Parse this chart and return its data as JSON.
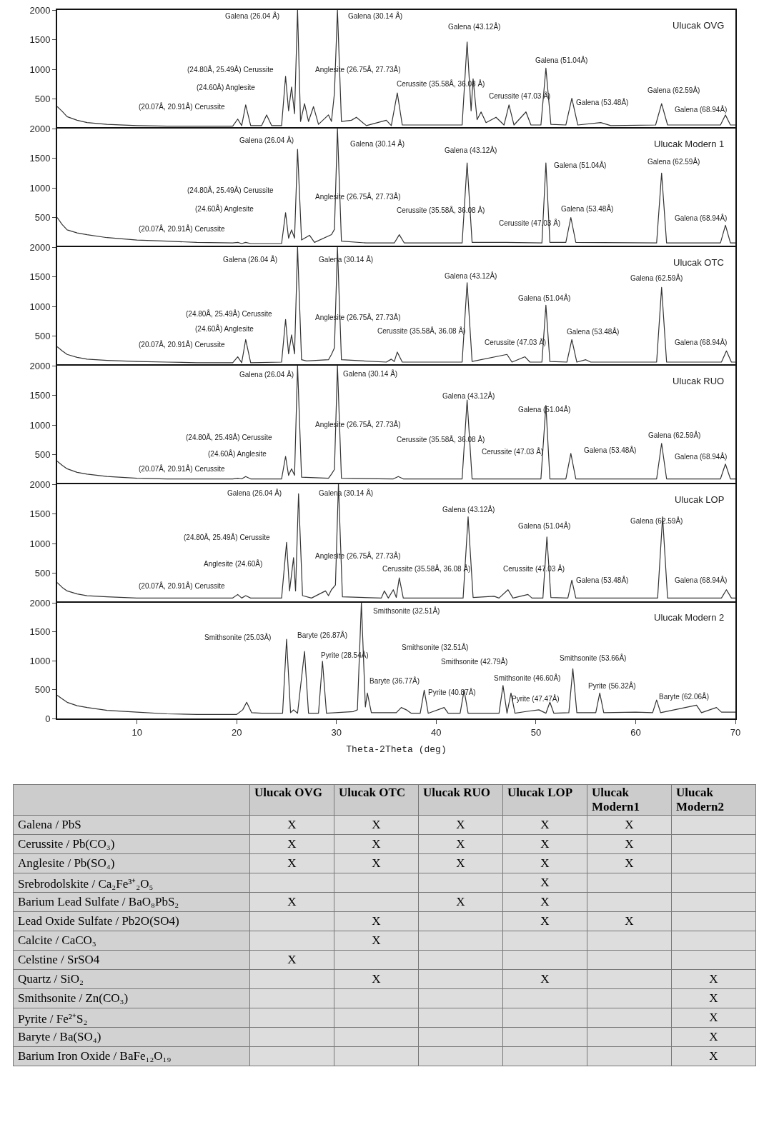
{
  "chart_data": [
    {
      "type": "line",
      "title": "Ulucak OVG",
      "tick_labels": "y",
      "xlim": [
        2,
        70
      ],
      "xticks": [
        10,
        20,
        30,
        40,
        50,
        60,
        70
      ],
      "ylim": [
        0,
        2000
      ],
      "yticks": [
        500,
        1000,
        1500,
        2000
      ],
      "x": [
        2,
        2.5,
        3,
        4,
        5,
        7,
        10,
        13,
        16,
        19.6,
        20.1,
        20.5,
        20.9,
        21.4,
        22.5,
        23,
        23.5,
        24.5,
        24.9,
        25.2,
        25.5,
        25.8,
        26.1,
        26.4,
        26.8,
        27.2,
        27.7,
        28.2,
        29.2,
        29.5,
        29.8,
        30.1,
        30.5,
        31.5,
        32,
        33,
        35,
        35.5,
        36.1,
        36.6,
        40,
        42.6,
        43.1,
        43.5,
        43.7,
        44.1,
        44.5,
        45,
        46,
        46.8,
        47.3,
        47.8,
        49,
        49.5,
        50.5,
        51,
        51.5,
        53,
        53.6,
        54.2,
        56.5,
        57.5,
        62,
        62.6,
        63.2,
        68.5,
        69,
        69.5,
        70
      ],
      "series": [
        {
          "color": "#333333",
          "values": [
            370,
            290,
            200,
            140,
            100,
            70,
            50,
            40,
            40,
            40,
            160,
            50,
            400,
            50,
            50,
            230,
            50,
            50,
            880,
            300,
            700,
            250,
            2000,
            120,
            420,
            120,
            370,
            70,
            230,
            120,
            600,
            2000,
            120,
            140,
            190,
            50,
            140,
            50,
            600,
            60,
            60,
            60,
            1460,
            300,
            840,
            150,
            280,
            100,
            190,
            60,
            400,
            60,
            280,
            60,
            60,
            1020,
            70,
            60,
            510,
            60,
            100,
            50,
            60,
            420,
            60,
            60,
            230,
            60,
            60
          ]
        }
      ],
      "annotations": [
        "Galena (26.04 Å)",
        "Galena (30.14 Å)",
        "Galena (43.12Å)",
        "(24.80Å, 25.49Å) Cerussite",
        "Anglesite (26.75Å, 27.73Å)",
        "(24.60Å) Anglesite",
        "(20.07Å, 20.91Å) Cerussite",
        "Galena (51.04Å)",
        "Cerussite (35.58Å, 36.08 Å)",
        "Cerussite (47.03 Å)",
        "Galena (53.48Å)",
        "Galena (62.59Å)",
        "Galena (68.94Å)"
      ]
    },
    {
      "type": "line",
      "title": "Ulucak Modern 1",
      "tick_labels": "y",
      "xlim": [
        2,
        70
      ],
      "xticks": [
        10,
        20,
        30,
        40,
        50,
        60,
        70
      ],
      "ylim": [
        0,
        2000
      ],
      "yticks": [
        500,
        1000,
        1500,
        2000
      ],
      "x": [
        2,
        2.5,
        3,
        4,
        5,
        7,
        10,
        13,
        16,
        19.6,
        20.1,
        20.5,
        20.9,
        21.4,
        24.5,
        24.9,
        25.2,
        25.5,
        25.8,
        26.1,
        26.5,
        27.3,
        27.8,
        29.5,
        29.8,
        30.1,
        30.5,
        33,
        35.8,
        36.3,
        36.8,
        42.6,
        43.1,
        43.6,
        47,
        50.6,
        51,
        51.4,
        53,
        53.5,
        54,
        62.1,
        62.6,
        63.1,
        68.5,
        69,
        69.5,
        70
      ],
      "series": [
        {
          "color": "#333333",
          "values": [
            500,
            380,
            290,
            240,
            210,
            160,
            120,
            100,
            80,
            70,
            80,
            60,
            80,
            60,
            60,
            580,
            150,
            290,
            150,
            1650,
            120,
            200,
            80,
            210,
            300,
            2000,
            100,
            70,
            70,
            210,
            70,
            70,
            1420,
            80,
            80,
            70,
            1420,
            80,
            80,
            500,
            80,
            70,
            1250,
            70,
            70,
            370,
            70,
            70
          ]
        }
      ],
      "annotations": [
        "Galena (26.04 Å)",
        "Galena (30.14 Å)",
        "Galena (43.12Å)",
        "Galena (51.04Å)",
        "Galena (62.59Å)",
        "(24.80Å, 25.49Å) Cerussite",
        "Anglesite (26.75Å, 27.73Å)",
        "(24.60Å) Anglesite",
        "Cerussite (35.58Å, 36.08 Å)",
        "Galena (53.48Å)",
        "Cerussite (47.03 Å)",
        "(20.07Å, 20.91Å) Cerussite",
        "Galena (68.94Å)"
      ]
    },
    {
      "type": "line",
      "title": "Ulucak OTC",
      "tick_labels": "y",
      "xlim": [
        2,
        70
      ],
      "xticks": [
        10,
        20,
        30,
        40,
        50,
        60,
        70
      ],
      "ylim": [
        0,
        2000
      ],
      "yticks": [
        500,
        1000,
        1500,
        2000
      ],
      "x": [
        2,
        2.5,
        3,
        4,
        5,
        7,
        10,
        13,
        16,
        19.6,
        20.1,
        20.5,
        20.9,
        21.4,
        24.5,
        24.9,
        25.2,
        25.5,
        25.8,
        26.1,
        26.5,
        27,
        29.2,
        29.5,
        29.8,
        30.1,
        30.5,
        35,
        35.5,
        35.8,
        36.1,
        36.6,
        42.6,
        43.1,
        43.6,
        47.1,
        47.6,
        48.9,
        49.4,
        50.6,
        51,
        51.4,
        53.1,
        53.6,
        54.1,
        55,
        55.5,
        62.1,
        62.6,
        63.1,
        68.6,
        69.1,
        69.6,
        70
      ],
      "series": [
        {
          "color": "#333333",
          "values": [
            320,
            250,
            190,
            140,
            110,
            90,
            70,
            60,
            50,
            50,
            150,
            50,
            440,
            50,
            60,
            780,
            200,
            520,
            200,
            2000,
            100,
            80,
            100,
            190,
            300,
            2000,
            100,
            60,
            110,
            70,
            230,
            60,
            60,
            1400,
            70,
            190,
            60,
            150,
            60,
            60,
            1020,
            70,
            60,
            440,
            60,
            100,
            60,
            60,
            1320,
            60,
            60,
            250,
            60,
            60
          ]
        }
      ],
      "annotations": [
        "Galena (26.04 Å)",
        "Galena (30.14 Å)",
        "Galena (43.12Å)",
        "Galena (62.59Å)",
        "Galena (51.04Å)",
        "(24.80Å, 25.49Å) Cerussite",
        "Anglesite (26.75Å, 27.73Å)",
        "(24.60Å) Anglesite",
        "Cerussite (35.58Å, 36.08 Å)",
        "Galena (53.48Å)",
        "(20.07Å, 20.91Å) Cerussite",
        "Cerussite (47.03 Å)",
        "Galena (68.94Å)"
      ]
    },
    {
      "type": "line",
      "title": "Ulucak RUO",
      "tick_labels": "y",
      "xlim": [
        2,
        70
      ],
      "xticks": [
        10,
        20,
        30,
        40,
        50,
        60,
        70
      ],
      "ylim": [
        0,
        2000
      ],
      "yticks": [
        500,
        1000,
        1500,
        2000
      ],
      "x": [
        2,
        2.5,
        3,
        4,
        5,
        7,
        10,
        13,
        16,
        19.6,
        20.1,
        20.5,
        20.9,
        21.4,
        24.5,
        24.9,
        25.2,
        25.5,
        25.8,
        26.1,
        26.5,
        29.2,
        29.5,
        29.8,
        30.1,
        30.5,
        35.7,
        36.2,
        36.7,
        42.6,
        43.1,
        43.6,
        50.5,
        51,
        51.4,
        53,
        53.5,
        54,
        62.1,
        62.6,
        63.1,
        68.5,
        69,
        69.5,
        70
      ],
      "series": [
        {
          "color": "#333333",
          "values": [
            390,
            320,
            260,
            200,
            170,
            130,
            100,
            90,
            90,
            90,
            100,
            90,
            130,
            90,
            90,
            470,
            150,
            260,
            150,
            2000,
            120,
            100,
            170,
            250,
            2000,
            100,
            90,
            130,
            90,
            90,
            1420,
            90,
            90,
            1330,
            90,
            90,
            520,
            90,
            90,
            690,
            90,
            90,
            340,
            90,
            90
          ]
        }
      ],
      "annotations": [
        "Galena (26.04 Å)",
        "Galena (30.14 Å)",
        "Galena (43.12Å)",
        "Galena (51.04Å)",
        "Galena (62.59Å)",
        "Anglesite (26.75Å, 27.73Å)",
        "(24.80Å, 25.49Å) Cerussite",
        "Cerussite (35.58Å, 36.08 Å)",
        "(24.60Å) Anglesite",
        "Cerussite (47.03 Å)",
        "Galena (53.48Å)",
        "(20.07Å, 20.91Å) Cerussite",
        "Galena (68.94Å)"
      ]
    },
    {
      "type": "line",
      "title": "Ulucak LOP",
      "tick_labels": "y",
      "xlim": [
        2,
        70
      ],
      "xticks": [
        10,
        20,
        30,
        40,
        50,
        60,
        70
      ],
      "ylim": [
        0,
        2000
      ],
      "yticks": [
        500,
        1000,
        1500,
        2000
      ],
      "x": [
        2,
        2.5,
        3,
        4,
        5,
        7,
        10,
        13,
        16,
        19.6,
        20.1,
        20.5,
        20.9,
        21.4,
        24.5,
        25,
        25.3,
        25.7,
        25.9,
        26.2,
        26.6,
        27.5,
        28.9,
        29.2,
        29.5,
        29.9,
        30.2,
        30.6,
        34.5,
        34.8,
        35.2,
        35.7,
        36,
        36.3,
        36.7,
        42.7,
        43.2,
        43.7,
        45.8,
        46.3,
        47.2,
        47.7,
        49.2,
        49.6,
        50.7,
        51.1,
        51.5,
        53.2,
        53.6,
        54,
        62.2,
        62.7,
        63.2,
        68.6,
        69.1,
        69.6,
        70
      ],
      "series": [
        {
          "color": "#333333",
          "values": [
            340,
            260,
            200,
            150,
            120,
            100,
            80,
            80,
            80,
            80,
            140,
            80,
            120,
            80,
            80,
            1020,
            200,
            760,
            200,
            1840,
            120,
            80,
            200,
            120,
            220,
            300,
            2000,
            100,
            80,
            200,
            80,
            220,
            90,
            420,
            80,
            80,
            1450,
            90,
            110,
            80,
            220,
            80,
            140,
            80,
            80,
            1110,
            90,
            80,
            380,
            80,
            80,
            1450,
            80,
            80,
            220,
            80,
            80
          ]
        }
      ],
      "annotations": [
        "Galena (26.04 Å)",
        "Galena (30.14 Å)",
        "Galena (43.12Å)",
        "Galena (62.59Å)",
        "Galena (51.04Å)",
        "(24.80Å, 25.49Å) Cerussite",
        "Anglesite (26.75Å, 27.73Å)",
        "Anglesite (24.60Å)",
        "Cerussite (35.58Å, 36.08 Å)",
        "Cerussite (47.03 Å)",
        "Galena (53.48Å)",
        "(20.07Å, 20.91Å) Cerussite",
        "Galena (68.94Å)"
      ]
    },
    {
      "type": "line",
      "title": "Ulucak Modern 2",
      "xlabel": "Theta-2Theta (deg)",
      "xlim": [
        2,
        70
      ],
      "xticks": [
        10,
        20,
        30,
        40,
        50,
        60,
        70
      ],
      "ylim": [
        0,
        2000
      ],
      "yticks": [
        0,
        500,
        1000,
        1500,
        2000
      ],
      "x": [
        2,
        2.5,
        3,
        4,
        5,
        7,
        10,
        13,
        16,
        20,
        20.6,
        21,
        21.5,
        22.5,
        24.6,
        25,
        25.4,
        25.7,
        26.1,
        26.8,
        27.2,
        28.2,
        28.6,
        29,
        31.7,
        32.1,
        32.5,
        32.9,
        33.1,
        33.5,
        36,
        36.5,
        37,
        37.5,
        38.4,
        38.8,
        39.2,
        40.8,
        41.2,
        42.4,
        42.8,
        43.2,
        46.3,
        46.7,
        47.1,
        47.5,
        47.9,
        49,
        50.3,
        51,
        51.4,
        51.8,
        53.3,
        53.7,
        54.1,
        56,
        56.4,
        56.8,
        60,
        61.7,
        62.1,
        62.5,
        66.1,
        66.6,
        68.1,
        68.6,
        70
      ],
      "series": [
        {
          "color": "#333333",
          "values": [
            400,
            340,
            280,
            220,
            190,
            140,
            110,
            80,
            70,
            70,
            150,
            280,
            100,
            90,
            90,
            1370,
            100,
            150,
            90,
            1160,
            90,
            90,
            990,
            90,
            120,
            150,
            2000,
            200,
            440,
            100,
            100,
            190,
            150,
            90,
            90,
            490,
            90,
            190,
            90,
            90,
            490,
            90,
            90,
            570,
            90,
            440,
            90,
            120,
            150,
            90,
            280,
            90,
            100,
            860,
            100,
            100,
            440,
            100,
            110,
            100,
            320,
            100,
            230,
            100,
            190,
            110,
            110
          ]
        }
      ],
      "annotations": [
        "Smithsonite (32.51Å)",
        "Smithsonite (25.03Å)",
        "Baryte (26.87Å)",
        "Pyrite (28.54Å)",
        "Smithsonite (32.51Å)",
        "Smithsonite (42.79Å)",
        "Smithsonite (53.66Å)",
        "Smithsonite (46.60Å)",
        "Baryte (36.77Å)",
        "Pyrite (40.87Å)",
        "Pyrite (47.47Å)",
        "Pyrite (56.32Å)",
        "Baryte (62.06Å)"
      ]
    },
    {
      "type": "heatmap",
      "categories": [
        "Ulucak OVG",
        "Ulucak OTC",
        "Ulucak RUO",
        "Ulucak LOP",
        "Ulucak Modern1",
        "Ulucak Modern2"
      ],
      "y_categories": [
        "Galena / PbS",
        "Cerussite / Pb(CO₃)",
        "Anglesite / Pb(SO₄)",
        "Srebrodolskite / Ca₂Fe³⁺₂O₅",
        "Barium Lead Sulfate / BaO₈PbS₂",
        "Lead Oxide Sulfate / Pb2O(SO4)",
        "Calcite / CaCO₃",
        "Celstine / SrSO4",
        "Quartz / SiO₂",
        "Smithsonite / Zn(CO₃)",
        "Pyrite / Fe²⁺S₂",
        "Baryte / Ba(SO₄)",
        "Barium Iron Oxide / BaFe₁₂O₁₉"
      ],
      "cells": [
        [
          "X",
          "X",
          "X",
          "X",
          "X",
          null
        ],
        [
          "X",
          "X",
          "X",
          "X",
          "X",
          null
        ],
        [
          "X",
          "X",
          "X",
          "X",
          "X",
          null
        ],
        [
          null,
          null,
          null,
          "X",
          null,
          null
        ],
        [
          "X",
          null,
          "X",
          "X",
          null,
          null
        ],
        [
          null,
          "X",
          null,
          "X",
          "X",
          null
        ],
        [
          null,
          "X",
          null,
          null,
          null,
          null
        ],
        [
          "X",
          null,
          null,
          null,
          null,
          null
        ],
        [
          null,
          "X",
          null,
          "X",
          null,
          "X"
        ],
        [
          null,
          null,
          null,
          null,
          null,
          "X"
        ],
        [
          null,
          null,
          null,
          null,
          null,
          "X"
        ],
        [
          null,
          null,
          null,
          null,
          null,
          "X"
        ],
        [
          null,
          null,
          null,
          null,
          null,
          "X"
        ]
      ]
    }
  ]
}
